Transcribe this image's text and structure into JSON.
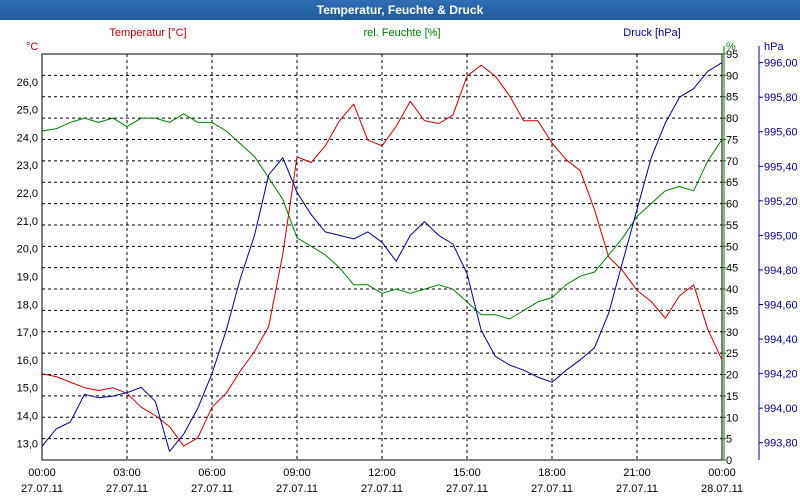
{
  "window": {
    "title": "Temperatur, Feuchte & Druck"
  },
  "colors": {
    "temperature": "#cc0000",
    "humidity": "#008000",
    "pressure": "#000099",
    "grid": "#000000",
    "text": "#000000"
  },
  "chart_data": {
    "type": "line",
    "title": "Temperatur, Feuchte & Druck",
    "grid": true,
    "x_range_hours": [
      0,
      24
    ],
    "x_ticks": [
      {
        "h": 0,
        "time": "00:00",
        "date": "27.07.11"
      },
      {
        "h": 3,
        "time": "03:00",
        "date": "27.07.11"
      },
      {
        "h": 6,
        "time": "06:00",
        "date": "27.07.11"
      },
      {
        "h": 9,
        "time": "09:00",
        "date": "27.07.11"
      },
      {
        "h": 12,
        "time": "12:00",
        "date": "27.07.11"
      },
      {
        "h": 15,
        "time": "15:00",
        "date": "27.07.11"
      },
      {
        "h": 18,
        "time": "18:00",
        "date": "27.07.11"
      },
      {
        "h": 21,
        "time": "21:00",
        "date": "27.07.11"
      },
      {
        "h": 24,
        "time": "00:00",
        "date": "28.07.11"
      }
    ],
    "axes": {
      "temperature": {
        "unit": "°C",
        "header": "Temperatur [°C]",
        "range": [
          12.4,
          27.0
        ],
        "ticks": [
          "13,0",
          "14,0",
          "15,0",
          "16,0",
          "17,0",
          "18,0",
          "19,0",
          "20,0",
          "21,0",
          "22,0",
          "23,0",
          "24,0",
          "25,0",
          "26,0"
        ]
      },
      "humidity": {
        "unit": "%",
        "header": "rel. Feuchte [%]",
        "range": [
          0,
          95
        ],
        "ticks": [
          "0",
          "5",
          "10",
          "15",
          "20",
          "25",
          "30",
          "35",
          "40",
          "45",
          "50",
          "55",
          "60",
          "65",
          "70",
          "75",
          "80",
          "85",
          "90",
          "95"
        ]
      },
      "pressure": {
        "unit": "hPa",
        "header": "Druck [hPa]",
        "range": [
          993.7,
          996.05
        ],
        "ticks": [
          "993,80",
          "994,00",
          "994,20",
          "994,40",
          "994,60",
          "994,80",
          "995,00",
          "995,20",
          "995,40",
          "995,60",
          "995,80",
          "996,00"
        ]
      }
    },
    "series": [
      {
        "name": "Temperatur [°C]",
        "axis": "temperature",
        "x": [
          0,
          0.5,
          1,
          1.5,
          2,
          2.5,
          3,
          3.5,
          4,
          4.5,
          5,
          5.5,
          6,
          6.5,
          7,
          7.5,
          8,
          8.5,
          9,
          9.5,
          10,
          10.5,
          11,
          11.5,
          12,
          12.5,
          13,
          13.5,
          14,
          14.5,
          15,
          15.5,
          16,
          16.5,
          17,
          17.5,
          18,
          18.5,
          19,
          19.5,
          20,
          20.5,
          21,
          21.5,
          22,
          22.5,
          23,
          23.5,
          24
        ],
        "values": [
          15.5,
          15.4,
          15.2,
          15.0,
          14.9,
          15.0,
          14.8,
          14.3,
          14.0,
          13.6,
          12.9,
          13.2,
          14.3,
          14.8,
          15.6,
          16.3,
          17.2,
          19.8,
          23.3,
          23.1,
          23.7,
          24.6,
          25.2,
          23.9,
          23.7,
          24.4,
          25.3,
          24.6,
          24.5,
          24.8,
          26.2,
          26.6,
          26.2,
          25.5,
          24.6,
          24.6,
          23.8,
          23.2,
          22.8,
          21.4,
          19.7,
          19.2,
          18.5,
          18.1,
          17.5,
          18.3,
          18.7,
          17.1,
          16.0
        ]
      },
      {
        "name": "rel. Feuchte [%]",
        "axis": "humidity",
        "x": [
          0,
          0.5,
          1,
          1.5,
          2,
          2.5,
          3,
          3.5,
          4,
          4.5,
          5,
          5.5,
          6,
          6.5,
          7,
          7.5,
          8,
          8.5,
          9,
          9.5,
          10,
          10.5,
          11,
          11.5,
          12,
          12.5,
          13,
          13.5,
          14,
          14.5,
          15,
          15.5,
          16,
          16.5,
          17,
          17.5,
          18,
          18.5,
          19,
          19.5,
          20,
          20.5,
          21,
          21.5,
          22,
          22.5,
          23,
          23.5,
          24
        ],
        "values": [
          77,
          77.5,
          79,
          80,
          79,
          80,
          78,
          80,
          80,
          79,
          81,
          79,
          79,
          77,
          74,
          71,
          66,
          61,
          52,
          50,
          48,
          45,
          41,
          41,
          39,
          40,
          39,
          40,
          41,
          40,
          37,
          34,
          34,
          33,
          35,
          37,
          38,
          41,
          43,
          44,
          48,
          52,
          57,
          60,
          63,
          64,
          63,
          70,
          75
        ]
      },
      {
        "name": "Druck [hPa]",
        "axis": "pressure",
        "x": [
          0,
          0.5,
          1,
          1.5,
          2,
          2.5,
          3,
          3.5,
          4,
          4.5,
          5,
          5.5,
          6,
          6.5,
          7,
          7.5,
          8,
          8.5,
          9,
          9.5,
          10,
          10.5,
          11,
          11.5,
          12,
          12.5,
          13,
          13.5,
          14,
          14.5,
          15,
          15.5,
          16,
          16.5,
          17,
          17.5,
          18,
          18.5,
          19,
          19.5,
          20,
          20.5,
          21,
          21.5,
          22,
          22.5,
          23,
          23.5,
          24
        ],
        "values": [
          993.78,
          993.88,
          993.92,
          994.08,
          994.06,
          994.07,
          994.09,
          994.12,
          994.04,
          993.75,
          993.85,
          994.0,
          994.2,
          994.45,
          994.75,
          995.0,
          995.35,
          995.45,
          995.25,
          995.12,
          995.02,
          995.0,
          994.98,
          995.02,
          994.96,
          994.85,
          995.0,
          995.08,
          995.0,
          994.95,
          994.78,
          994.45,
          994.3,
          994.25,
          994.22,
          994.18,
          994.15,
          994.22,
          994.28,
          994.35,
          994.55,
          994.85,
          995.15,
          995.45,
          995.65,
          995.8,
          995.85,
          995.95,
          996.0
        ]
      }
    ]
  }
}
